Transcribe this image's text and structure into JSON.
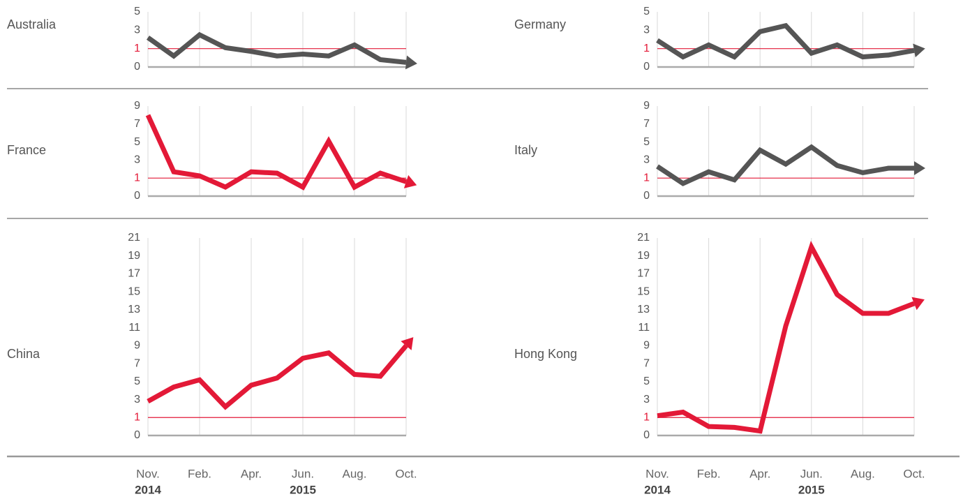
{
  "chart_data": [
    {
      "type": "line",
      "title": "Australia",
      "color": "#555555",
      "values": [
        2.2,
        0.6,
        2.5,
        1.1,
        0.85,
        0.6,
        0.7,
        0.6,
        1.4,
        0.4,
        0.25
      ],
      "ylim": [
        0,
        5
      ],
      "yticks": [
        0,
        1,
        3,
        5
      ],
      "reference_line": 1,
      "reference_color": "#e31937",
      "grid": true
    },
    {
      "type": "line",
      "title": "Germany",
      "color": "#555555",
      "values": [
        1.9,
        0.55,
        1.4,
        0.55,
        2.85,
        3.5,
        0.75,
        1.4,
        0.55,
        0.65,
        0.9
      ],
      "ylim": [
        0,
        5
      ],
      "yticks": [
        0,
        1,
        3,
        5
      ],
      "reference_line": 1,
      "reference_color": "#e31937",
      "grid": true
    },
    {
      "type": "line",
      "title": "France",
      "color": "#e31937",
      "values": [
        8.0,
        1.7,
        1.25,
        0.5,
        1.7,
        1.55,
        0.5,
        5.1,
        0.5,
        1.55,
        0.8
      ],
      "ylim": [
        0,
        9
      ],
      "yticks": [
        0,
        1,
        3,
        5,
        7,
        9
      ],
      "reference_line": 1,
      "reference_color": "#e31937",
      "grid": true
    },
    {
      "type": "line",
      "title": "Italy",
      "color": "#555555",
      "values": [
        2.3,
        0.7,
        1.7,
        0.9,
        4.1,
        2.55,
        4.45,
        2.4,
        1.6,
        2.1,
        2.1
      ],
      "ylim": [
        0,
        9
      ],
      "yticks": [
        0,
        1,
        3,
        5,
        7,
        9
      ],
      "reference_line": 1,
      "reference_color": "#e31937",
      "grid": true
    },
    {
      "type": "line",
      "title": "China",
      "color": "#e31937",
      "values": [
        2.8,
        4.4,
        5.2,
        2.2,
        4.6,
        5.4,
        7.6,
        8.2,
        5.8,
        5.6,
        9.0
      ],
      "ylim": [
        0,
        21
      ],
      "yticks": [
        0,
        1,
        3,
        5,
        7,
        9,
        11,
        13,
        15,
        17,
        19,
        21
      ],
      "reference_line": 1,
      "reference_color": "#e31937",
      "grid": true,
      "categories": [
        "Nov.",
        null,
        "Feb.",
        null,
        "Apr.",
        null,
        "Jun.",
        null,
        "Aug.",
        null,
        "Oct."
      ],
      "years": [
        "2014",
        null,
        null,
        null,
        null,
        null,
        "2015",
        null,
        null,
        null,
        null
      ]
    },
    {
      "type": "line",
      "title": "Hong Kong",
      "color": "#e31937",
      "values": [
        1.2,
        1.6,
        0.5,
        0.45,
        0.25,
        11.2,
        20.0,
        14.7,
        12.6,
        12.6,
        13.7
      ],
      "ylim": [
        0,
        21
      ],
      "yticks": [
        0,
        1,
        3,
        5,
        7,
        9,
        11,
        13,
        15,
        17,
        19,
        21
      ],
      "reference_line": 1,
      "reference_color": "#e31937",
      "grid": true,
      "categories": [
        "Nov.",
        null,
        "Feb.",
        null,
        "Apr.",
        null,
        "Jun.",
        null,
        "Aug.",
        null,
        "Oct."
      ],
      "years": [
        "2014",
        null,
        null,
        null,
        null,
        null,
        "2015",
        null,
        null,
        null,
        null
      ]
    }
  ]
}
